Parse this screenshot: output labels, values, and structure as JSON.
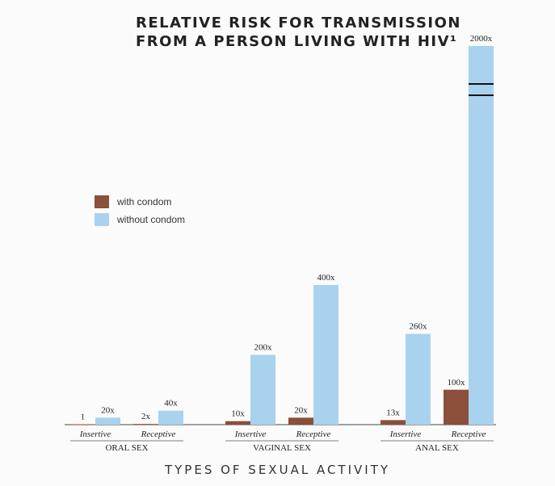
{
  "title_line1": "RELATIVE RISK FOR TRANSMISSION",
  "title_line2": "FROM A PERSON LIVING WITH HIV¹",
  "legend": [
    {
      "label": "with condom",
      "color": "#8b4f3b"
    },
    {
      "label": "without condom",
      "color": "#a9d2ee"
    }
  ],
  "x_axis_title": "TYPES OF SEXUAL ACTIVITY",
  "chart_data": {
    "type": "bar",
    "title": "RELATIVE RISK FOR TRANSMISSION FROM A PERSON LIVING WITH HIV¹",
    "xlabel": "TYPES OF SEXUAL ACTIVITY",
    "ylabel": "",
    "groups": [
      {
        "name": "ORAL SEX",
        "subcategories": [
          "Insertive",
          "Receptive"
        ]
      },
      {
        "name": "VAGINAL SEX",
        "subcategories": [
          "Insertive",
          "Receptive"
        ]
      },
      {
        "name": "ANAL SEX",
        "subcategories": [
          "Insertive",
          "Receptive"
        ]
      }
    ],
    "series": [
      {
        "name": "with condom",
        "values": [
          1,
          2,
          10,
          20,
          13,
          100
        ],
        "labels": [
          "1",
          "2x",
          "10x",
          "20x",
          "13x",
          "100x"
        ]
      },
      {
        "name": "without condom",
        "values": [
          20,
          40,
          200,
          400,
          260,
          2000
        ],
        "labels": [
          "20x",
          "40x",
          "200x",
          "400x",
          "260x",
          "2000x"
        ]
      }
    ],
    "scale": "linear with axis break on the tallest bar",
    "axis_break": {
      "series": "without condom",
      "category_index": 5
    },
    "ylim": [
      0,
      460
    ],
    "grid": false,
    "legend_position": "upper-left"
  }
}
